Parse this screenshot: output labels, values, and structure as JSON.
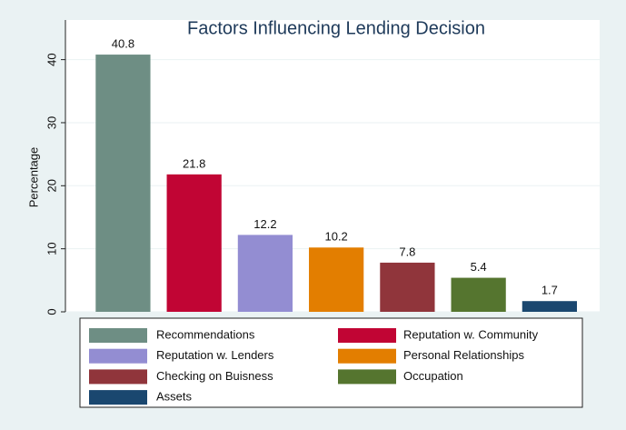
{
  "chart_data": {
    "type": "bar",
    "title": "Factors Influencing Lending Decision",
    "y_label": "Percentage",
    "categories": [
      "Recommendations",
      "Reputation w. Community",
      "Reputation w. Lenders",
      "Personal Relationships",
      "Checking on Buisness",
      "Occupation",
      "Assets"
    ],
    "values": [
      40.8,
      21.8,
      12.2,
      10.2,
      7.8,
      5.4,
      1.7
    ],
    "colors": [
      "#6e8e84",
      "#c10534",
      "#938dd2",
      "#e37e00",
      "#90353b",
      "#55752f",
      "#1a476f"
    ],
    "ylim": [
      0,
      46
    ],
    "yticks": [
      0,
      10,
      20,
      30,
      40
    ],
    "grid": true,
    "legend": "bottom"
  }
}
